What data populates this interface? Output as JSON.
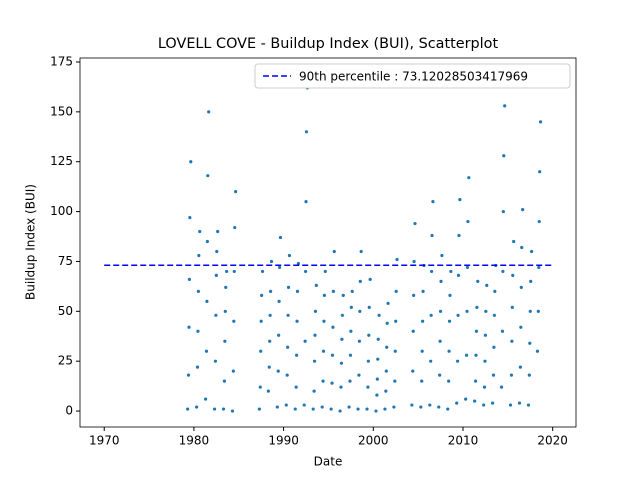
{
  "chart_data": {
    "type": "scatter",
    "title": "LOVELL COVE - Buildup Index (BUI), Scatterplot",
    "x_label": "Date",
    "y_label": "Buildup Index (BUI)",
    "color": "#1f77b4",
    "x": [
      1979.3,
      1979.4,
      1979.45,
      1979.5,
      1979.55,
      1979.65,
      1980.3,
      1980.4,
      1980.45,
      1980.5,
      1980.55,
      1980.65,
      1981.3,
      1981.4,
      1981.45,
      1981.5,
      1981.55,
      1981.65,
      1982.3,
      1982.4,
      1982.45,
      1982.5,
      1982.55,
      1982.65,
      1983.3,
      1983.4,
      1983.45,
      1983.5,
      1983.55,
      1983.65,
      1984.3,
      1984.4,
      1984.45,
      1984.5,
      1984.55,
      1984.65,
      1987.3,
      1987.4,
      1987.45,
      1987.5,
      1987.55,
      1987.65,
      1988.3,
      1988.4,
      1988.45,
      1988.5,
      1988.55,
      1988.65,
      1989.3,
      1989.4,
      1989.45,
      1989.5,
      1989.55,
      1989.65,
      1990.3,
      1990.4,
      1990.45,
      1990.5,
      1990.55,
      1990.65,
      1991.3,
      1991.4,
      1991.45,
      1991.5,
      1991.55,
      1991.65,
      1992.3,
      1992.4,
      1992.45,
      1992.5,
      1992.55,
      1992.65,
      1993.3,
      1993.4,
      1993.45,
      1993.5,
      1993.55,
      1993.65,
      1994.3,
      1994.4,
      1994.45,
      1994.5,
      1994.55,
      1994.65,
      1995.3,
      1995.4,
      1995.45,
      1995.5,
      1995.55,
      1995.65,
      1996.3,
      1996.4,
      1996.45,
      1996.5,
      1996.55,
      1996.65,
      1997.3,
      1997.4,
      1997.45,
      1997.5,
      1997.55,
      1997.65,
      1998.3,
      1998.4,
      1998.45,
      1998.5,
      1998.55,
      1998.65,
      1999.3,
      1999.4,
      1999.45,
      1999.5,
      1999.55,
      1999.65,
      2000.3,
      2000.4,
      2000.45,
      2000.5,
      2000.55,
      2000.65,
      2001.3,
      2001.4,
      2001.45,
      2001.5,
      2001.55,
      2001.65,
      2002.3,
      2002.4,
      2002.45,
      2002.5,
      2002.55,
      2002.65,
      2004.3,
      2004.4,
      2004.45,
      2004.5,
      2004.55,
      2004.65,
      2005.3,
      2005.4,
      2005.45,
      2005.5,
      2005.55,
      2005.65,
      2006.3,
      2006.4,
      2006.45,
      2006.5,
      2006.55,
      2006.65,
      2007.3,
      2007.4,
      2007.45,
      2007.5,
      2007.55,
      2007.65,
      2008.3,
      2008.4,
      2008.45,
      2008.5,
      2008.55,
      2008.65,
      2009.3,
      2009.4,
      2009.45,
      2009.5,
      2009.55,
      2009.65,
      2010.3,
      2010.4,
      2010.45,
      2010.5,
      2010.55,
      2010.65,
      2011.3,
      2011.4,
      2011.45,
      2011.5,
      2011.55,
      2011.65,
      2012.3,
      2012.4,
      2012.45,
      2012.5,
      2012.55,
      2012.65,
      2013.3,
      2013.4,
      2013.45,
      2013.5,
      2013.55,
      2013.65,
      2014.3,
      2014.4,
      2014.45,
      2014.5,
      2014.55,
      2014.65,
      2015.3,
      2015.4,
      2015.45,
      2015.5,
      2015.55,
      2015.65,
      2016.3,
      2016.4,
      2016.45,
      2016.5,
      2016.55,
      2016.65,
      2017.3,
      2017.4,
      2017.45,
      2017.5,
      2017.55,
      2017.65,
      2018.3,
      2018.4,
      2018.45,
      2018.5,
      2018.55,
      2018.65
    ],
    "values": [
      1,
      18,
      42,
      66,
      97,
      125,
      2,
      22,
      40,
      60,
      78,
      90,
      6,
      30,
      55,
      85,
      118,
      150,
      1,
      25,
      48,
      68,
      80,
      90,
      1,
      15,
      35,
      50,
      62,
      70,
      0,
      20,
      45,
      70,
      92,
      110,
      1,
      12,
      30,
      45,
      58,
      70,
      10,
      22,
      35,
      48,
      60,
      75,
      2,
      20,
      38,
      55,
      72,
      87,
      3,
      18,
      32,
      48,
      62,
      78,
      1,
      12,
      28,
      45,
      60,
      74,
      3,
      35,
      70,
      105,
      140,
      162,
      1,
      10,
      25,
      38,
      50,
      63,
      2,
      15,
      30,
      45,
      58,
      70,
      1,
      14,
      28,
      42,
      60,
      80,
      0,
      12,
      24,
      36,
      48,
      58,
      2,
      15,
      28,
      40,
      52,
      60,
      1,
      18,
      35,
      50,
      65,
      80,
      1,
      12,
      25,
      38,
      52,
      66,
      0,
      8,
      16,
      26,
      36,
      48,
      1,
      10,
      20,
      32,
      44,
      54,
      2,
      15,
      30,
      45,
      60,
      76,
      3,
      20,
      40,
      58,
      75,
      94,
      2,
      15,
      30,
      45,
      60,
      73,
      3,
      25,
      48,
      70,
      88,
      105,
      2,
      18,
      35,
      50,
      65,
      78,
      1,
      15,
      30,
      45,
      58,
      70,
      4,
      25,
      48,
      68,
      88,
      106,
      6,
      28,
      50,
      72,
      95,
      117,
      5,
      15,
      28,
      40,
      52,
      65,
      3,
      12,
      25,
      38,
      50,
      63,
      4,
      18,
      32,
      48,
      60,
      73,
      12,
      40,
      70,
      100,
      128,
      153,
      3,
      18,
      35,
      52,
      68,
      85,
      4,
      22,
      42,
      62,
      82,
      101,
      3,
      18,
      34,
      50,
      65,
      80,
      30,
      50,
      72,
      95,
      120,
      145
    ],
    "hline": {
      "name": "90th percentile : 73.12028503417969",
      "value": 73.12028503417969,
      "x": [
        1970,
        2020
      ],
      "color": "#0000ff"
    },
    "legend": "upper right",
    "xlim": [
      1967.3,
      2022.6
    ],
    "xticks": [
      1970,
      1980,
      1990,
      2000,
      2010,
      2020
    ],
    "ylim": [
      -8,
      177
    ],
    "yticks": [
      0,
      25,
      50,
      75,
      100,
      125,
      150,
      175
    ]
  }
}
